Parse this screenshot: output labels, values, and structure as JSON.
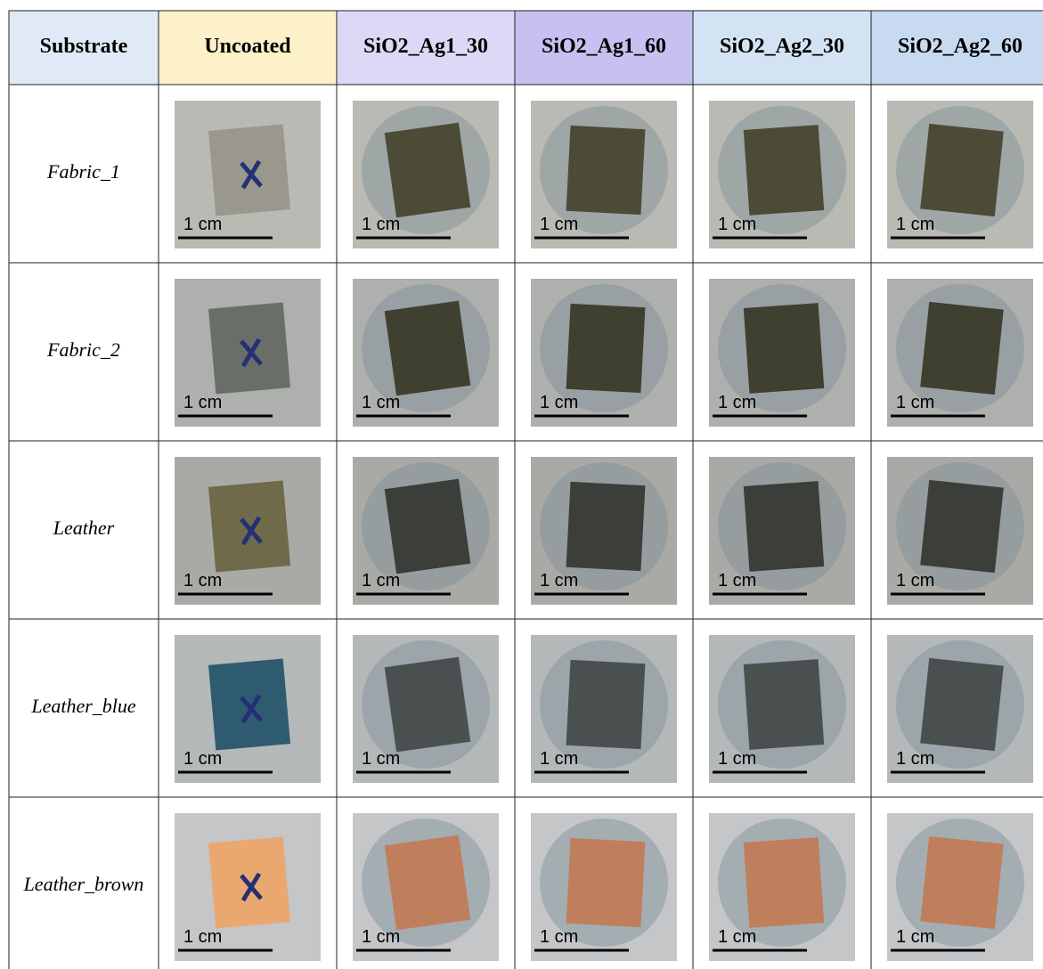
{
  "table": {
    "header": [
      "Substrate",
      "Uncoated",
      "SiO2_Ag1_30",
      "SiO2_Ag1_60",
      "SiO2_Ag2_30",
      "SiO2_Ag2_60"
    ],
    "rows": [
      {
        "substrate": "Fabric_1",
        "cells": [
          "1 cm",
          "1 cm",
          "1 cm",
          "1 cm",
          "1 cm"
        ]
      },
      {
        "substrate": "Fabric_2",
        "cells": [
          "1 cm",
          "1 cm",
          "1 cm",
          "1 cm",
          "1 cm"
        ]
      },
      {
        "substrate": "Leather",
        "cells": [
          "1 cm",
          "1 cm",
          "1 cm",
          "1 cm",
          "1 cm"
        ]
      },
      {
        "substrate": "Leather_blue",
        "cells": [
          "1 cm",
          "1 cm",
          "1 cm",
          "1 cm",
          "1 cm"
        ]
      },
      {
        "substrate": "Leather_brown",
        "cells": [
          "1 cm",
          "1 cm",
          "1 cm",
          "1 cm",
          "1 cm"
        ]
      }
    ]
  }
}
